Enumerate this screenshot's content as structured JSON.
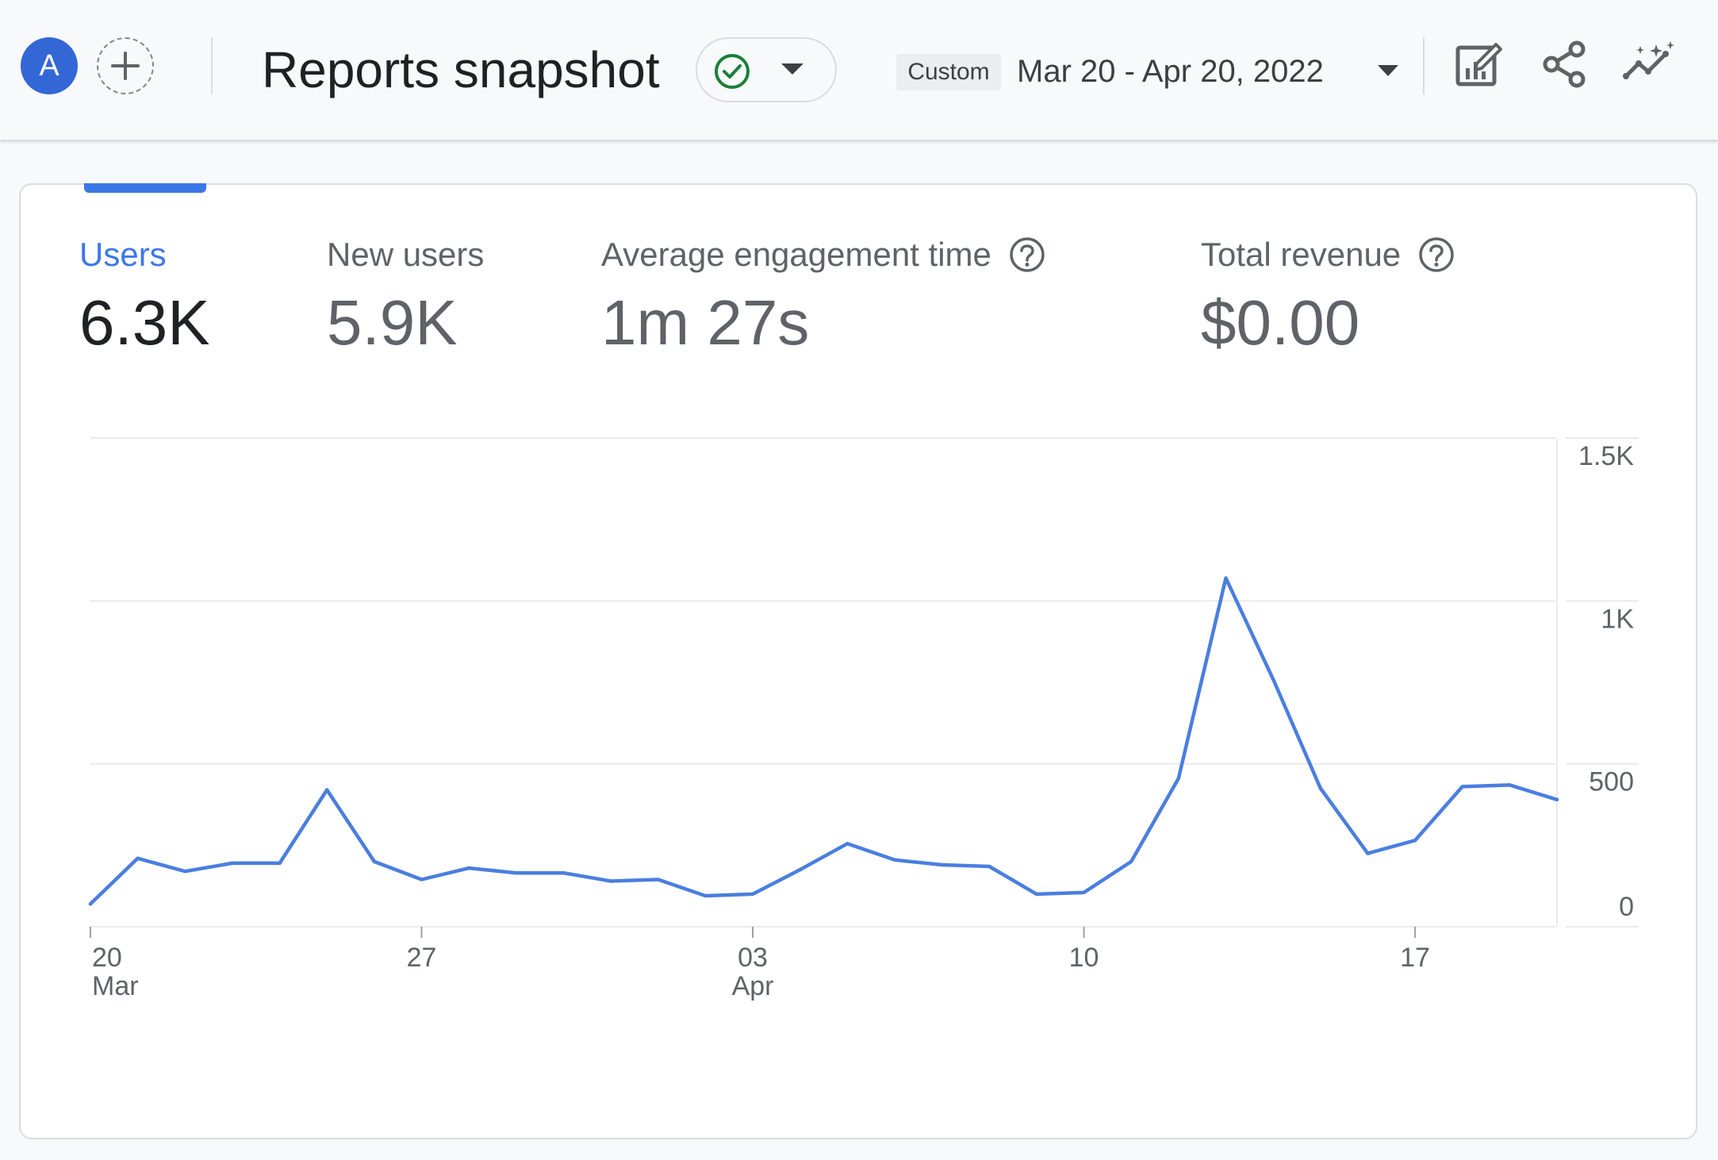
{
  "header": {
    "avatar_letter": "A",
    "title": "Reports snapshot",
    "status_icon": "check-circle-icon",
    "date_preset": "Custom",
    "date_range": "Mar 20 - Apr 20, 2022",
    "actions": [
      "customize-report-icon",
      "share-icon",
      "insights-icon"
    ]
  },
  "metrics": [
    {
      "label": "Users",
      "value": "6.3K",
      "active": true
    },
    {
      "label": "New users",
      "value": "5.9K",
      "active": false
    },
    {
      "label": "Average engagement time",
      "value": "1m 27s",
      "help": true,
      "active": false
    },
    {
      "label": "Total revenue",
      "value": "$0.00",
      "help": true,
      "active": false
    }
  ],
  "colors": {
    "accent": "#3b78e7",
    "avatar": "#3367d6",
    "check": "#188038",
    "line": "#4a7ee0"
  },
  "chart_data": {
    "type": "line",
    "series": [
      {
        "values": [
          70,
          210,
          170,
          195,
          195,
          420,
          200,
          145,
          180,
          165,
          165,
          140,
          145,
          95,
          100,
          175,
          255,
          205,
          190,
          185,
          100,
          105,
          200,
          455,
          1070,
          760,
          425,
          225,
          265,
          430,
          435,
          390
        ]
      }
    ],
    "x_start": "2022-03-20",
    "x_end": "2022-04-20",
    "x_ticks": [
      {
        "index": 0,
        "label": "20",
        "sublabel": "Mar"
      },
      {
        "index": 7,
        "label": "27",
        "sublabel": ""
      },
      {
        "index": 14,
        "label": "03",
        "sublabel": "Apr"
      },
      {
        "index": 21,
        "label": "10",
        "sublabel": ""
      },
      {
        "index": 28,
        "label": "17",
        "sublabel": ""
      }
    ],
    "y_ticks": [
      {
        "value": 0,
        "label": "0"
      },
      {
        "value": 500,
        "label": "500"
      },
      {
        "value": 1000,
        "label": "1K"
      },
      {
        "value": 1500,
        "label": "1.5K"
      }
    ],
    "ylim": [
      0,
      1500
    ],
    "grid": true
  }
}
